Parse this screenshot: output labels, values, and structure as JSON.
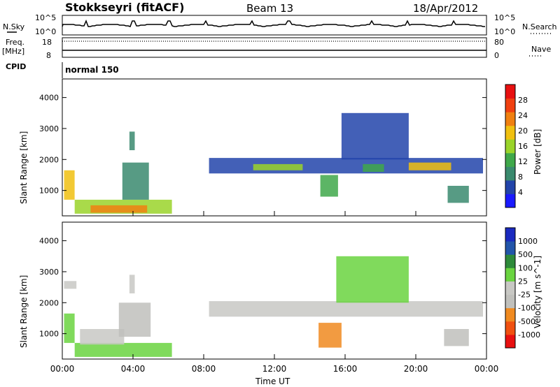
{
  "header": {
    "station": "Stokkseyri (fitACF)",
    "beam": "Beam 13",
    "date": "18/Apr/2012"
  },
  "aux": {
    "nsky_label": "N.Sky",
    "nsky_top_tick": "10^5",
    "nsky_bottom_tick": "10^0",
    "nsearch_label": "N.Search",
    "freq_label_1": "Freq.",
    "freq_label_2": "[MHz]",
    "freq_top_tick": "18",
    "freq_bottom_tick": "8",
    "nave_label": "Nave",
    "nave_top_tick": "80",
    "nave_bottom_tick": "0",
    "cpid_label": "CPID",
    "cpid_value": "normal 150"
  },
  "colors": {
    "power_scale": [
      "#1a1aff",
      "#2244aa",
      "#3a8a6e",
      "#3fa84a",
      "#9ad42a",
      "#f0c010",
      "#f08010",
      "#f04010",
      "#e81010"
    ],
    "velocity_scale": [
      "#e81010",
      "#f05010",
      "#f08a20",
      "#c0c0bc",
      "#c8c8c4",
      "#6ad440",
      "#2e8a3a",
      "#2255aa",
      "#1a2abf"
    ]
  },
  "chart_data": [
    {
      "type": "heatmap",
      "title": "",
      "ylabel": "Slant Range [km]",
      "xlabel": "",
      "ylim": [
        180,
        4600
      ],
      "xlim": [
        "00:00",
        "24:00"
      ],
      "yticks": [
        "1000",
        "2000",
        "3000",
        "4000"
      ],
      "colorbar_label": "Power [dB]",
      "colorbar_ticks": [
        "4",
        "8",
        "12",
        "16",
        "20",
        "24",
        "28"
      ],
      "colorbar_range": [
        0,
        32
      ],
      "regions": [
        {
          "t0": 0.1,
          "t1": 0.7,
          "r0": 700,
          "r1": 1650,
          "level": 20
        },
        {
          "t0": 0.7,
          "t1": 6.2,
          "r0": 250,
          "r1": 700,
          "level": 16
        },
        {
          "t0": 1.6,
          "t1": 4.8,
          "r0": 280,
          "r1": 520,
          "level": 24
        },
        {
          "t0": 3.4,
          "t1": 4.9,
          "r0": 700,
          "r1": 1900,
          "level": 10
        },
        {
          "t0": 3.8,
          "t1": 4.1,
          "r0": 2300,
          "r1": 2900,
          "level": 9
        },
        {
          "t0": 8.3,
          "t1": 23.8,
          "r0": 1550,
          "r1": 2050,
          "level": 6
        },
        {
          "t0": 10.8,
          "t1": 13.6,
          "r0": 1650,
          "r1": 1850,
          "level": 16
        },
        {
          "t0": 17.0,
          "t1": 18.2,
          "r0": 1600,
          "r1": 1850,
          "level": 14
        },
        {
          "t0": 19.6,
          "t1": 22.0,
          "r0": 1650,
          "r1": 1900,
          "level": 20
        },
        {
          "t0": 15.8,
          "t1": 19.6,
          "r0": 2000,
          "r1": 3500,
          "level": 6
        },
        {
          "t0": 14.6,
          "t1": 15.6,
          "r0": 800,
          "r1": 1500,
          "level": 14
        },
        {
          "t0": 21.8,
          "t1": 23.0,
          "r0": 600,
          "r1": 1150,
          "level": 8
        }
      ]
    },
    {
      "type": "heatmap",
      "title": "",
      "ylabel": "Slant Range [km]",
      "xlabel": "Time UT",
      "ylim": [
        180,
        4600
      ],
      "xlim": [
        "00:00",
        "24:00"
      ],
      "yticks": [
        "1000",
        "2000",
        "3000",
        "4000"
      ],
      "xticks": [
        "00:00",
        "04:00",
        "08:00",
        "12:00",
        "16:00",
        "20:00",
        "00:00"
      ],
      "colorbar_label": "Velocity [m s^-1]",
      "colorbar_ticks": [
        "-1000",
        "-500",
        "-100",
        "-25",
        "25",
        "100",
        "500",
        "1000"
      ],
      "colorbar_range": [
        -1250,
        1250
      ],
      "regions": [
        {
          "t0": 0.1,
          "t1": 0.7,
          "r0": 700,
          "r1": 1650,
          "level": 300
        },
        {
          "t0": 0.7,
          "t1": 6.2,
          "r0": 250,
          "r1": 700,
          "level": 200
        },
        {
          "t0": 1.0,
          "t1": 3.5,
          "r0": 650,
          "r1": 1150,
          "level": 20
        },
        {
          "t0": 3.2,
          "t1": 5.0,
          "r0": 900,
          "r1": 2000,
          "level": -150
        },
        {
          "t0": 3.8,
          "t1": 4.1,
          "r0": 2300,
          "r1": 2900,
          "level": 10
        },
        {
          "t0": 0.1,
          "t1": 0.8,
          "r0": 2450,
          "r1": 2700,
          "level": 0
        },
        {
          "t0": 8.3,
          "t1": 23.8,
          "r0": 1550,
          "r1": 2050,
          "level": 0
        },
        {
          "t0": 15.5,
          "t1": 19.6,
          "r0": 2000,
          "r1": 3500,
          "level": 150
        },
        {
          "t0": 14.5,
          "t1": 15.8,
          "r0": 550,
          "r1": 1350,
          "level": -600
        },
        {
          "t0": 21.6,
          "t1": 23.0,
          "r0": 600,
          "r1": 1150,
          "level": -300
        }
      ]
    }
  ]
}
